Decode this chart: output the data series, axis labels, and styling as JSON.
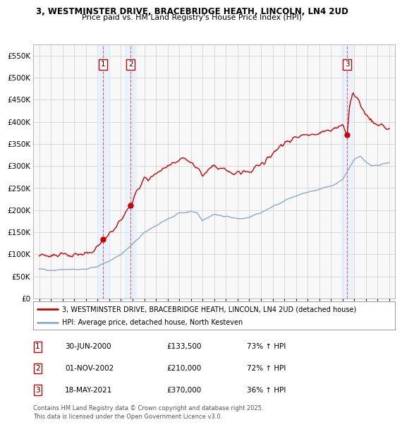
{
  "title_line1": "3, WESTMINSTER DRIVE, BRACEBRIDGE HEATH, LINCOLN, LN4 2UD",
  "title_line2": "Price paid vs. HM Land Registry's House Price Index (HPI)",
  "ylim": [
    0,
    575000
  ],
  "yticks": [
    0,
    50000,
    100000,
    150000,
    200000,
    250000,
    300000,
    350000,
    400000,
    450000,
    500000,
    550000
  ],
  "ytick_labels": [
    "£0",
    "£50K",
    "£100K",
    "£150K",
    "£200K",
    "£250K",
    "£300K",
    "£350K",
    "£400K",
    "£450K",
    "£500K",
    "£550K"
  ],
  "xlim_start": 1994.5,
  "xlim_end": 2025.5,
  "sale_dates": [
    2000.49,
    2002.83,
    2021.38
  ],
  "sale_prices": [
    133500,
    210000,
    370000
  ],
  "sale_labels": [
    "1",
    "2",
    "3"
  ],
  "line_color_red": "#cc0000",
  "line_color_blue": "#88aacc",
  "vline_color": "#cc0000",
  "background_color": "#ffffff",
  "legend_entries": [
    "3, WESTMINSTER DRIVE, BRACEBRIDGE HEATH, LINCOLN, LN4 2UD (detached house)",
    "HPI: Average price, detached house, North Kesteven"
  ],
  "table_data": [
    [
      "1",
      "30-JUN-2000",
      "£133,500",
      "73% ↑ HPI"
    ],
    [
      "2",
      "01-NOV-2002",
      "£210,000",
      "72% ↑ HPI"
    ],
    [
      "3",
      "18-MAY-2021",
      "£370,000",
      "36% ↑ HPI"
    ]
  ],
  "footnote": "Contains HM Land Registry data © Crown copyright and database right 2025.\nThis data is licensed under the Open Government Licence v3.0.",
  "xtick_years": [
    1995,
    1996,
    1997,
    1998,
    1999,
    2000,
    2001,
    2002,
    2003,
    2004,
    2005,
    2006,
    2007,
    2008,
    2009,
    2010,
    2011,
    2012,
    2013,
    2014,
    2015,
    2016,
    2017,
    2018,
    2019,
    2020,
    2021,
    2022,
    2023,
    2024,
    2025
  ],
  "red_keypoints": [
    [
      1995.0,
      98000
    ],
    [
      1996.0,
      96000
    ],
    [
      1997.0,
      99000
    ],
    [
      1998.0,
      97000
    ],
    [
      1999.5,
      105000
    ],
    [
      2000.49,
      133500
    ],
    [
      2001.2,
      148000
    ],
    [
      2002.83,
      210000
    ],
    [
      2003.3,
      240000
    ],
    [
      2004.0,
      268000
    ],
    [
      2005.0,
      282000
    ],
    [
      2006.0,
      298000
    ],
    [
      2007.0,
      312000
    ],
    [
      2007.5,
      318000
    ],
    [
      2008.5,
      298000
    ],
    [
      2009.0,
      278000
    ],
    [
      2009.5,
      290000
    ],
    [
      2010.0,
      300000
    ],
    [
      2011.0,
      290000
    ],
    [
      2012.0,
      282000
    ],
    [
      2013.0,
      286000
    ],
    [
      2014.0,
      305000
    ],
    [
      2015.0,
      328000
    ],
    [
      2016.0,
      352000
    ],
    [
      2017.0,
      365000
    ],
    [
      2018.0,
      372000
    ],
    [
      2019.0,
      375000
    ],
    [
      2020.0,
      382000
    ],
    [
      2021.0,
      390000
    ],
    [
      2021.38,
      370000
    ],
    [
      2021.6,
      440000
    ],
    [
      2021.9,
      468000
    ],
    [
      2022.2,
      455000
    ],
    [
      2022.7,
      430000
    ],
    [
      2023.0,
      415000
    ],
    [
      2023.5,
      400000
    ],
    [
      2024.0,
      392000
    ],
    [
      2024.5,
      388000
    ],
    [
      2025.0,
      385000
    ]
  ],
  "blue_keypoints": [
    [
      1995.0,
      67000
    ],
    [
      1996.0,
      64000
    ],
    [
      1997.0,
      66000
    ],
    [
      1998.0,
      65000
    ],
    [
      1999.0,
      67000
    ],
    [
      2000.0,
      73000
    ],
    [
      2001.0,
      85000
    ],
    [
      2002.0,
      100000
    ],
    [
      2003.0,
      122000
    ],
    [
      2004.0,
      150000
    ],
    [
      2005.0,
      165000
    ],
    [
      2006.0,
      180000
    ],
    [
      2007.0,
      193000
    ],
    [
      2008.0,
      197000
    ],
    [
      2008.5,
      195000
    ],
    [
      2009.0,
      178000
    ],
    [
      2010.0,
      190000
    ],
    [
      2011.0,
      186000
    ],
    [
      2012.0,
      180000
    ],
    [
      2013.0,
      183000
    ],
    [
      2014.0,
      194000
    ],
    [
      2015.0,
      208000
    ],
    [
      2016.0,
      220000
    ],
    [
      2017.0,
      233000
    ],
    [
      2018.0,
      240000
    ],
    [
      2019.0,
      248000
    ],
    [
      2020.0,
      255000
    ],
    [
      2021.0,
      270000
    ],
    [
      2021.5,
      292000
    ],
    [
      2022.0,
      315000
    ],
    [
      2022.5,
      322000
    ],
    [
      2023.0,
      308000
    ],
    [
      2023.5,
      300000
    ],
    [
      2024.0,
      302000
    ],
    [
      2024.5,
      305000
    ],
    [
      2025.0,
      308000
    ]
  ]
}
